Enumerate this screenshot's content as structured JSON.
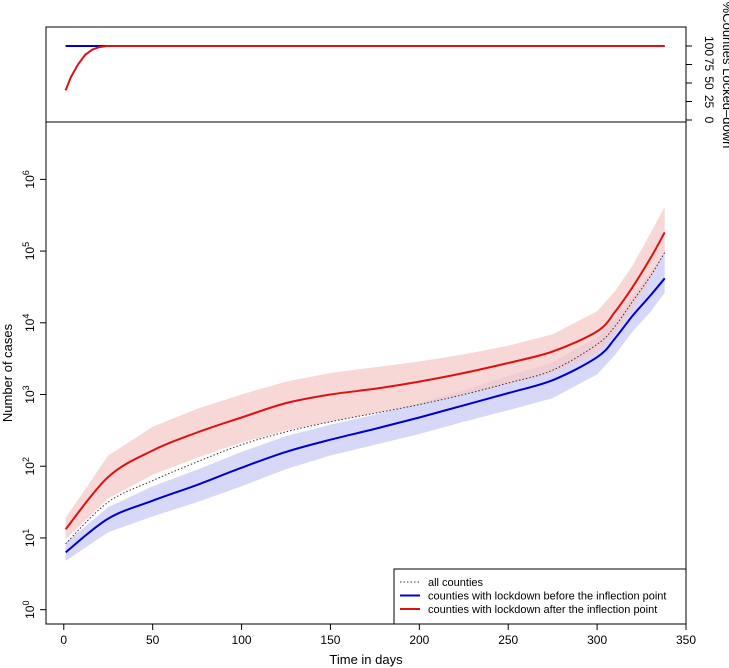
{
  "chart_data": [
    {
      "type": "line",
      "panel": "top",
      "ylabel": "%Counties Locked–down",
      "ylim": [
        0,
        100
      ],
      "yticks": [
        0,
        25,
        50,
        75,
        100
      ],
      "ytick_labels": [
        "0",
        "25",
        "50",
        "75",
        "100"
      ],
      "yaxis_side": "right",
      "xlim": [
        -10,
        350
      ],
      "series": [
        {
          "name": "counties with lockdown before the inflection point",
          "color": "#0000cc",
          "x": [
            1,
            338
          ],
          "y": [
            100,
            100
          ]
        },
        {
          "name": "counties with lockdown after the inflection point",
          "color": "#dd1111",
          "x": [
            1,
            4,
            8,
            12,
            16,
            20,
            24,
            338
          ],
          "y": [
            40,
            58,
            75,
            88,
            95,
            98.5,
            100,
            100
          ]
        }
      ]
    },
    {
      "type": "line",
      "panel": "bottom",
      "xlabel": "Time in days",
      "ylabel": "Number of cases",
      "yscale": "log",
      "xlim": [
        -10,
        350
      ],
      "ylim_log10": [
        -0.2,
        6.8
      ],
      "xticks": [
        0,
        50,
        100,
        150,
        200,
        250,
        300,
        350
      ],
      "xtick_labels": [
        "0",
        "50",
        "100",
        "150",
        "200",
        "250",
        "300",
        "350"
      ],
      "yticks_log10": [
        0,
        1,
        2,
        3,
        4,
        5,
        6
      ],
      "ytick_labels": [
        {
          "base": "10",
          "exp": "0"
        },
        {
          "base": "10",
          "exp": "1"
        },
        {
          "base": "10",
          "exp": "2"
        },
        {
          "base": "10",
          "exp": "3"
        },
        {
          "base": "10",
          "exp": "4"
        },
        {
          "base": "10",
          "exp": "5"
        },
        {
          "base": "10",
          "exp": "6"
        }
      ],
      "x": [
        1,
        25,
        50,
        75,
        100,
        125,
        150,
        175,
        200,
        225,
        250,
        275,
        300,
        310,
        320,
        330,
        338
      ],
      "series": [
        {
          "name": "all counties",
          "style": "dotted",
          "color": "#333333",
          "log10": [
            0.92,
            1.5,
            1.8,
            2.06,
            2.3,
            2.48,
            2.62,
            2.74,
            2.86,
            3.0,
            3.16,
            3.34,
            3.7,
            3.95,
            4.3,
            4.65,
            4.98
          ]
        },
        {
          "name": "counties with lockdown before the inflection point",
          "style": "solid",
          "color": "#0000cc",
          "band_color": "#c9c9f5",
          "log10": [
            0.8,
            1.27,
            1.52,
            1.74,
            1.98,
            2.2,
            2.37,
            2.52,
            2.68,
            2.85,
            3.02,
            3.2,
            3.52,
            3.78,
            4.1,
            4.38,
            4.62
          ],
          "lower_log10": [
            0.68,
            1.08,
            1.3,
            1.5,
            1.72,
            1.96,
            2.15,
            2.3,
            2.45,
            2.62,
            2.78,
            2.95,
            3.28,
            3.55,
            3.88,
            4.15,
            4.42
          ],
          "upper_log10": [
            0.93,
            1.43,
            1.72,
            1.95,
            2.2,
            2.42,
            2.58,
            2.72,
            2.88,
            3.06,
            3.26,
            3.45,
            3.8,
            4.05,
            4.38,
            4.7,
            4.98
          ]
        },
        {
          "name": "counties with lockdown after the inflection point",
          "style": "solid",
          "color": "#dd1111",
          "band_color": "#f5caca",
          "log10": [
            1.12,
            1.85,
            2.22,
            2.47,
            2.68,
            2.88,
            3.0,
            3.08,
            3.18,
            3.3,
            3.44,
            3.6,
            3.88,
            4.15,
            4.5,
            4.9,
            5.26
          ],
          "lower_log10": [
            0.98,
            1.55,
            1.88,
            2.12,
            2.33,
            2.5,
            2.62,
            2.74,
            2.86,
            3.0,
            3.15,
            3.3,
            3.58,
            3.86,
            4.2,
            4.62,
            4.98
          ],
          "upper_log10": [
            1.28,
            2.15,
            2.55,
            2.8,
            3.0,
            3.18,
            3.3,
            3.38,
            3.46,
            3.56,
            3.68,
            3.84,
            4.16,
            4.44,
            4.8,
            5.25,
            5.62
          ]
        }
      ],
      "legend": {
        "position": "bottom-right",
        "entries": [
          {
            "label": "all counties",
            "style": "dotted",
            "color": "#333333"
          },
          {
            "label": "counties with lockdown before the inflection point",
            "style": "solid",
            "color": "#0000cc"
          },
          {
            "label": "counties with lockdown after the inflection point",
            "style": "solid",
            "color": "#dd1111"
          }
        ]
      }
    }
  ]
}
